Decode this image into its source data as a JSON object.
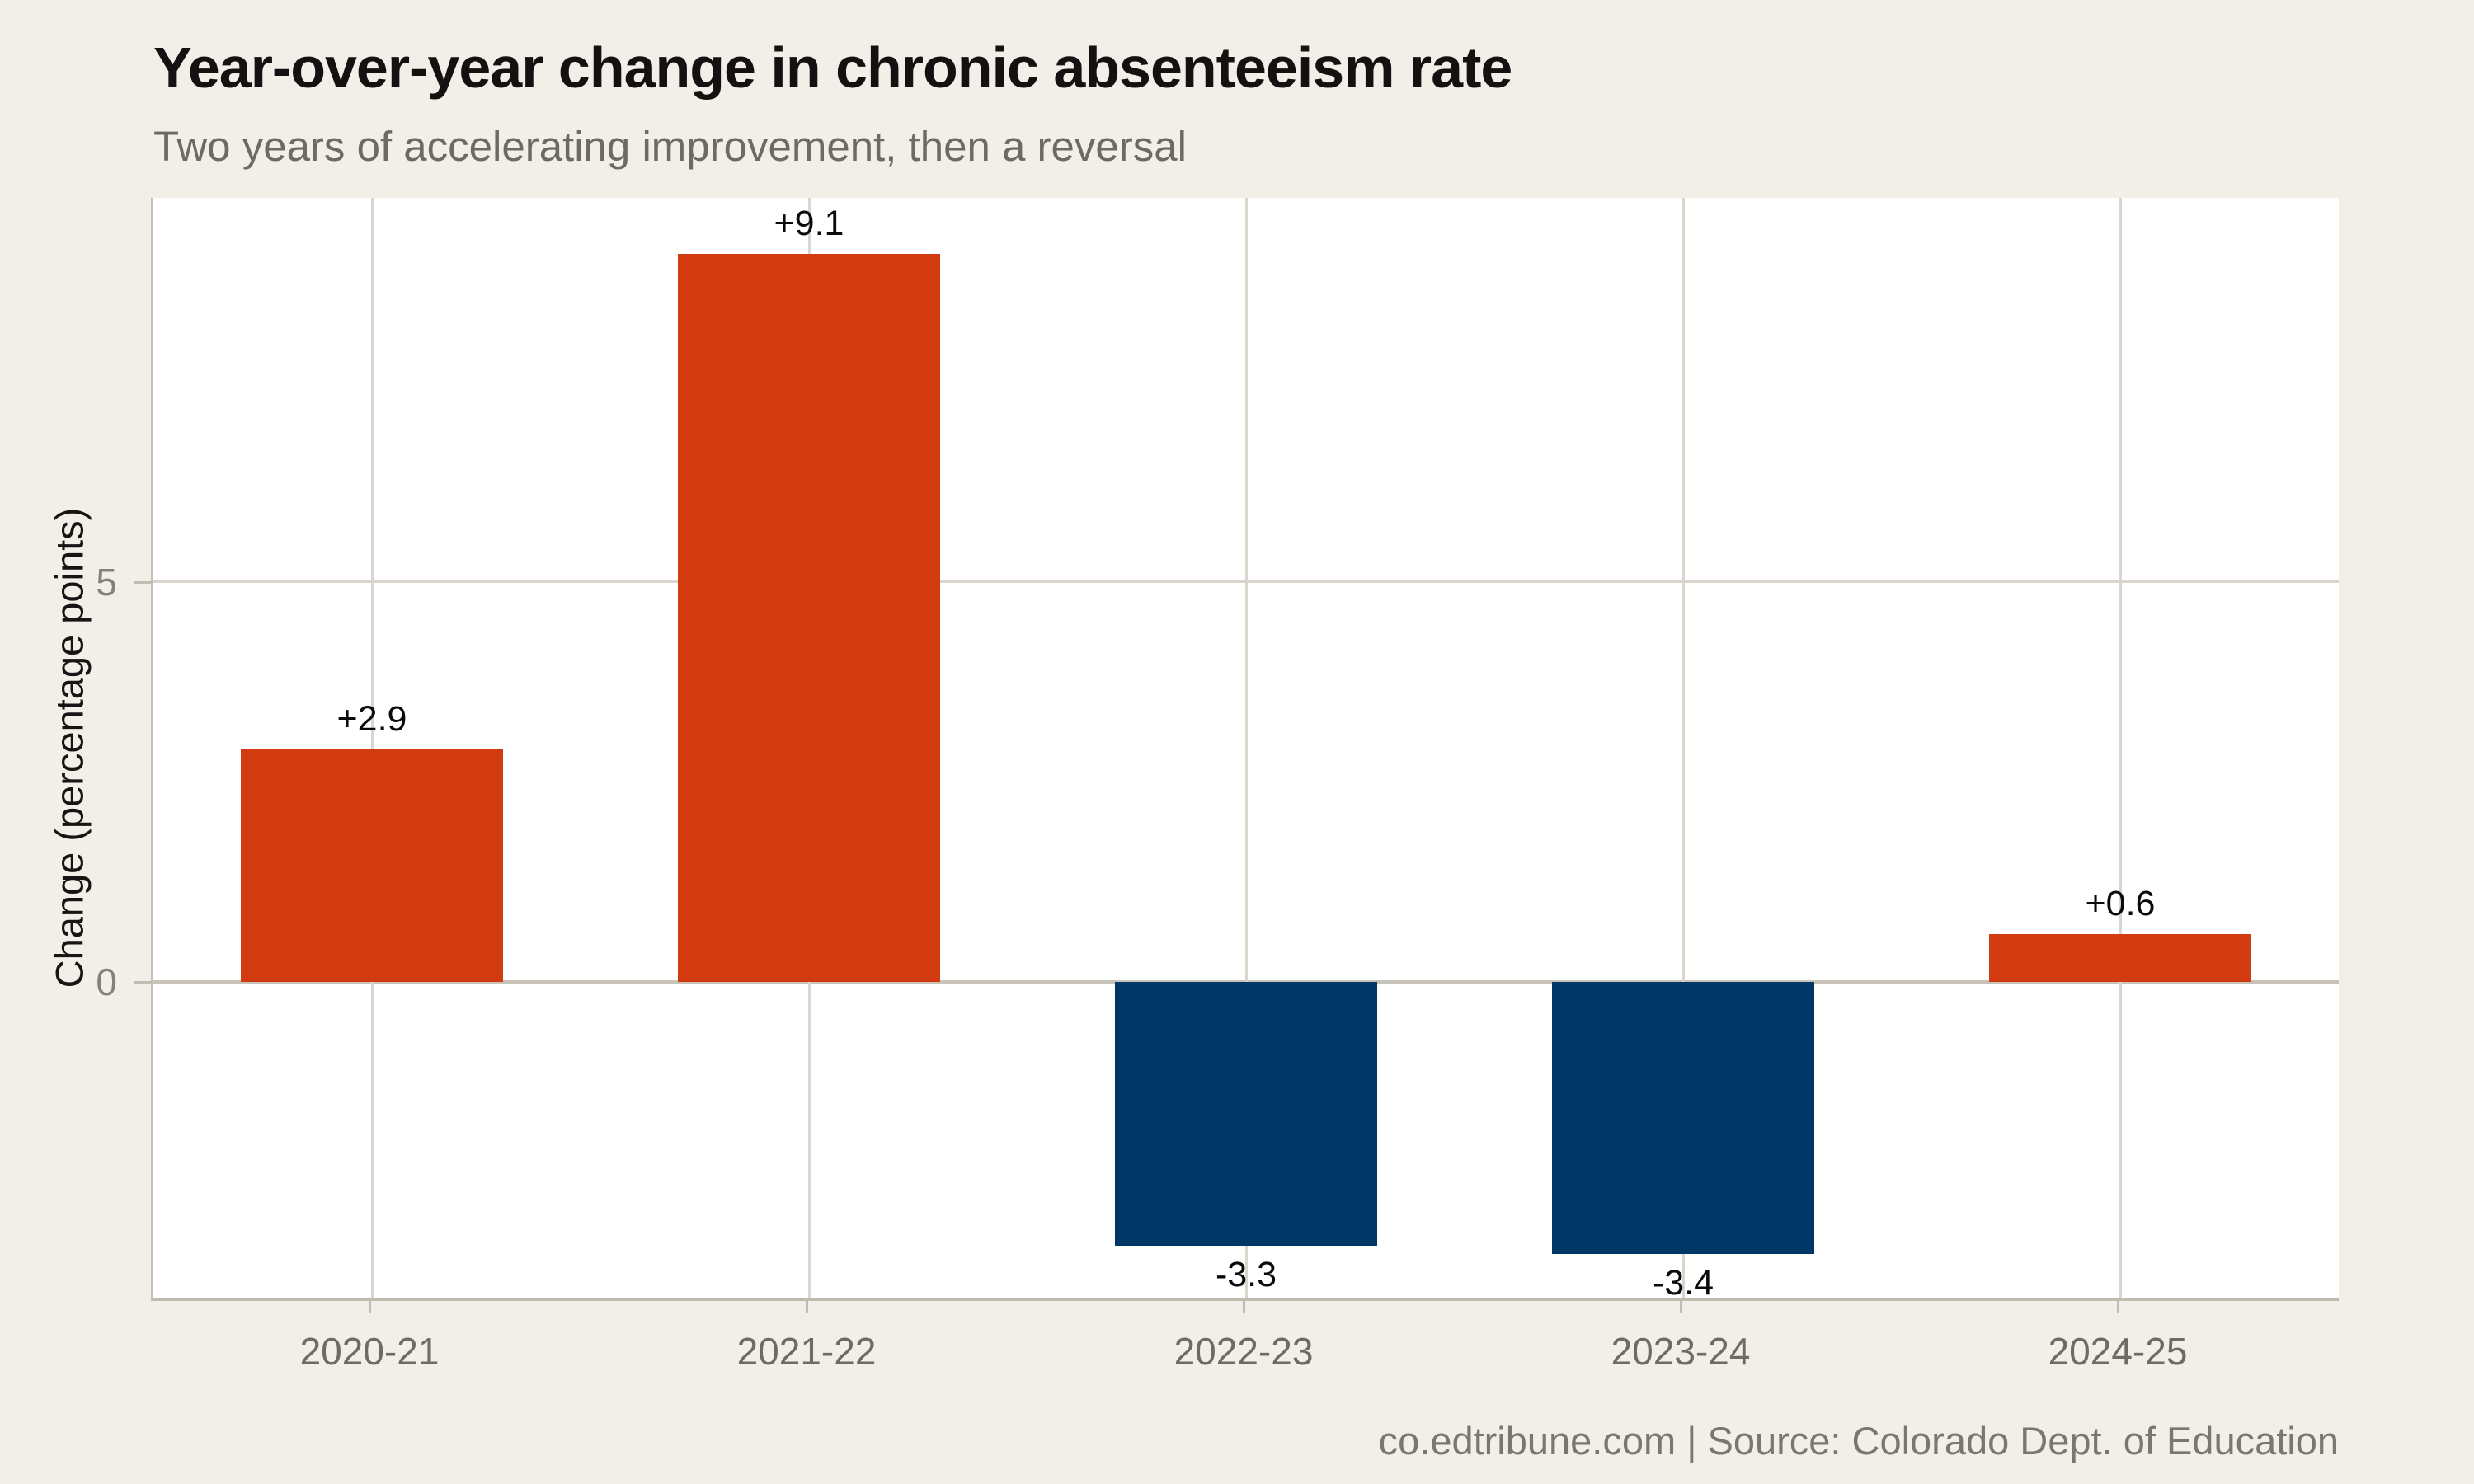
{
  "header": {
    "title": "Year-over-year change in chronic absenteeism rate",
    "subtitle": "Two years of accelerating improvement, then a reversal"
  },
  "footer": {
    "credit": "co.edtribune.com | Source: Colorado Dept. of Education"
  },
  "chart_data": {
    "type": "bar",
    "title": "Year-over-year change in chronic absenteeism rate",
    "subtitle": "Two years of accelerating improvement, then a reversal",
    "categories": [
      "2020-21",
      "2021-22",
      "2022-23",
      "2023-24",
      "2024-25"
    ],
    "values": [
      2.9,
      9.1,
      -3.3,
      -3.4,
      0.6
    ],
    "bar_labels": [
      "+2.9",
      "+9.1",
      "-3.3",
      "-3.4",
      "+0.6"
    ],
    "xlabel": "",
    "ylabel": "Change (percentage points)",
    "yticks": [
      5,
      0
    ],
    "ytick_labels": [
      "5",
      "0"
    ],
    "ylim": [
      -3.95,
      9.8
    ],
    "grid": "light warm-gray major gridlines: horizontal at y ticks, vertical at each category center; emphasized zero line",
    "legend": "none",
    "panel_background": "#ffffff",
    "page_background": "#f2efe9",
    "colors": {
      "positive_bar": "#d23a10",
      "negative_bar": "#003767",
      "gridline": "#dad6ce",
      "zero_line": "#c7c3b9",
      "axis_line": "#c0bcb2",
      "tick_label": "#84817a",
      "category_label": "#6e6b65"
    },
    "source": "co.edtribune.com | Source: Colorado Dept. of Education"
  }
}
